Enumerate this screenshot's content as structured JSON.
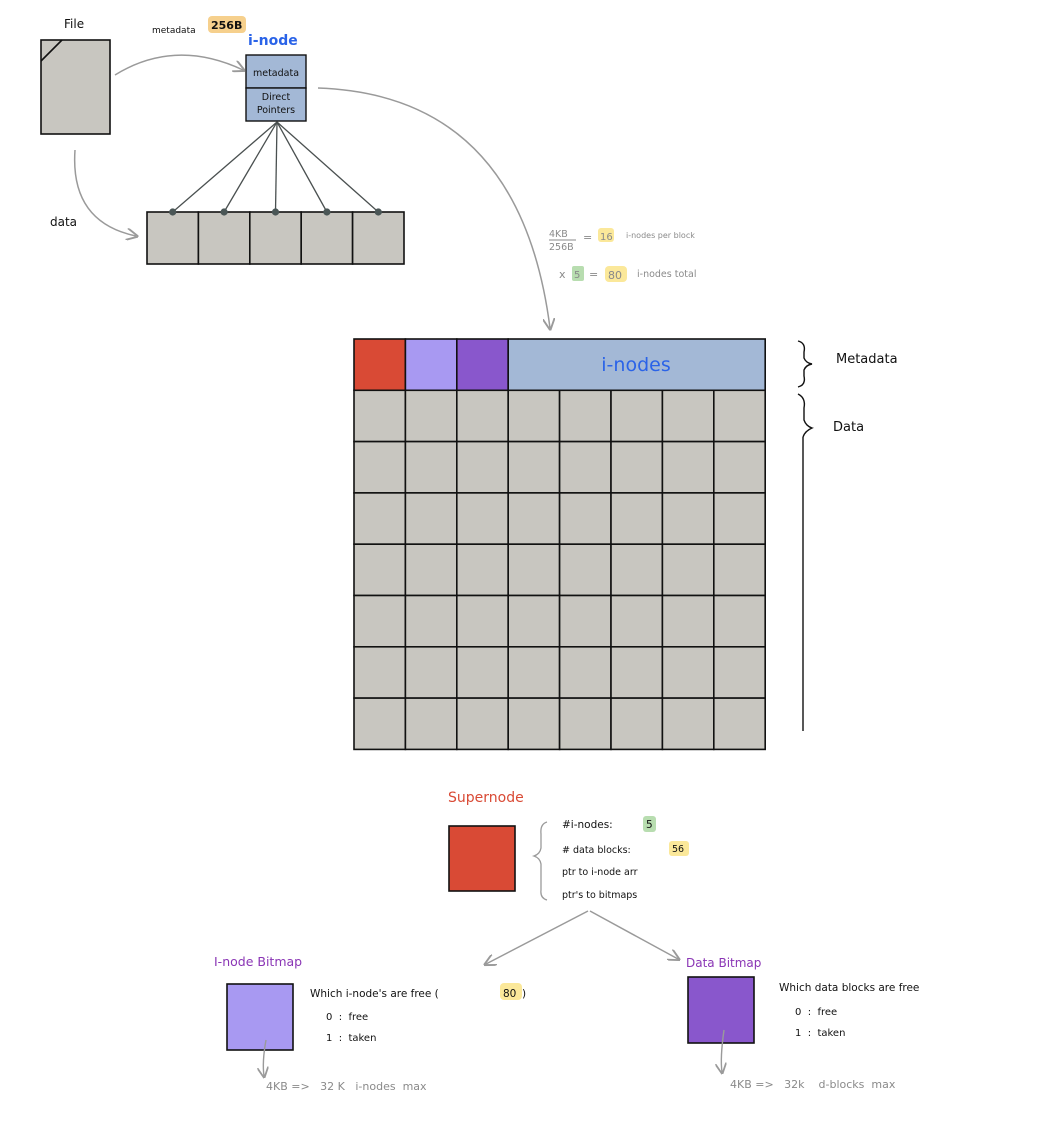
{
  "colors": {
    "block_fill": "#c8c6c0",
    "block_stroke": "#111111",
    "inode_fill": "#a3b8d6",
    "inode_text": "#2a63e8",
    "supernode_red": "#d94a35",
    "inode_bitmap": "#a899f2",
    "data_bitmap": "#8957cc",
    "highlight_yellow": "#fbe89a",
    "highlight_orange": "#f6d08d",
    "highlight_green": "#b8ddb0",
    "purple_text": "#8a35b5",
    "gray_text": "#8a8a8a",
    "arrow_gray": "#9a9a9a"
  },
  "top": {
    "file_label": "File",
    "data_label": "data",
    "metadata_size_label": "metadata",
    "metadata_size_value": "256B",
    "inode_title": "i-node",
    "inode_metadata_label": "metadata",
    "inode_pointers_line1": "Direct",
    "inode_pointers_line2": "Pointers",
    "data_block_count": 5
  },
  "calc": {
    "frac_top": "4KB",
    "frac_bottom": "256B",
    "equals": "=",
    "per_block_value": "16",
    "per_block_label": "i-nodes per block",
    "times": "x",
    "inode_blocks": "5",
    "equals2": "=",
    "total_value": "80",
    "total_label": "i-nodes total"
  },
  "disk": {
    "columns": 8,
    "rows": 8,
    "inodes_label": "i-nodes",
    "metadata_label": "Metadata",
    "data_label": "Data"
  },
  "supernode": {
    "title": "Supernode",
    "inodes_label": "#i-nodes:",
    "inodes_value": "5",
    "data_blocks_label": "# data blocks:",
    "data_blocks_value": "56",
    "ptr_inode_arr": "ptr to i-node arr",
    "ptr_bitmaps": "ptr's to bitmaps"
  },
  "inode_bitmap": {
    "title": "I-node Bitmap",
    "desc": "Which i-node's are free (",
    "desc_value": "80",
    "desc_close": ")",
    "free": "0  :  free",
    "taken": "1  :  taken",
    "capacity": "4KB =>   32 K   i-nodes  max"
  },
  "data_bitmap": {
    "title": "Data Bitmap",
    "desc": "Which data blocks are free",
    "free": "0  :  free",
    "taken": "1  :  taken",
    "capacity": "4KB =>   32k    d-blocks  max"
  }
}
